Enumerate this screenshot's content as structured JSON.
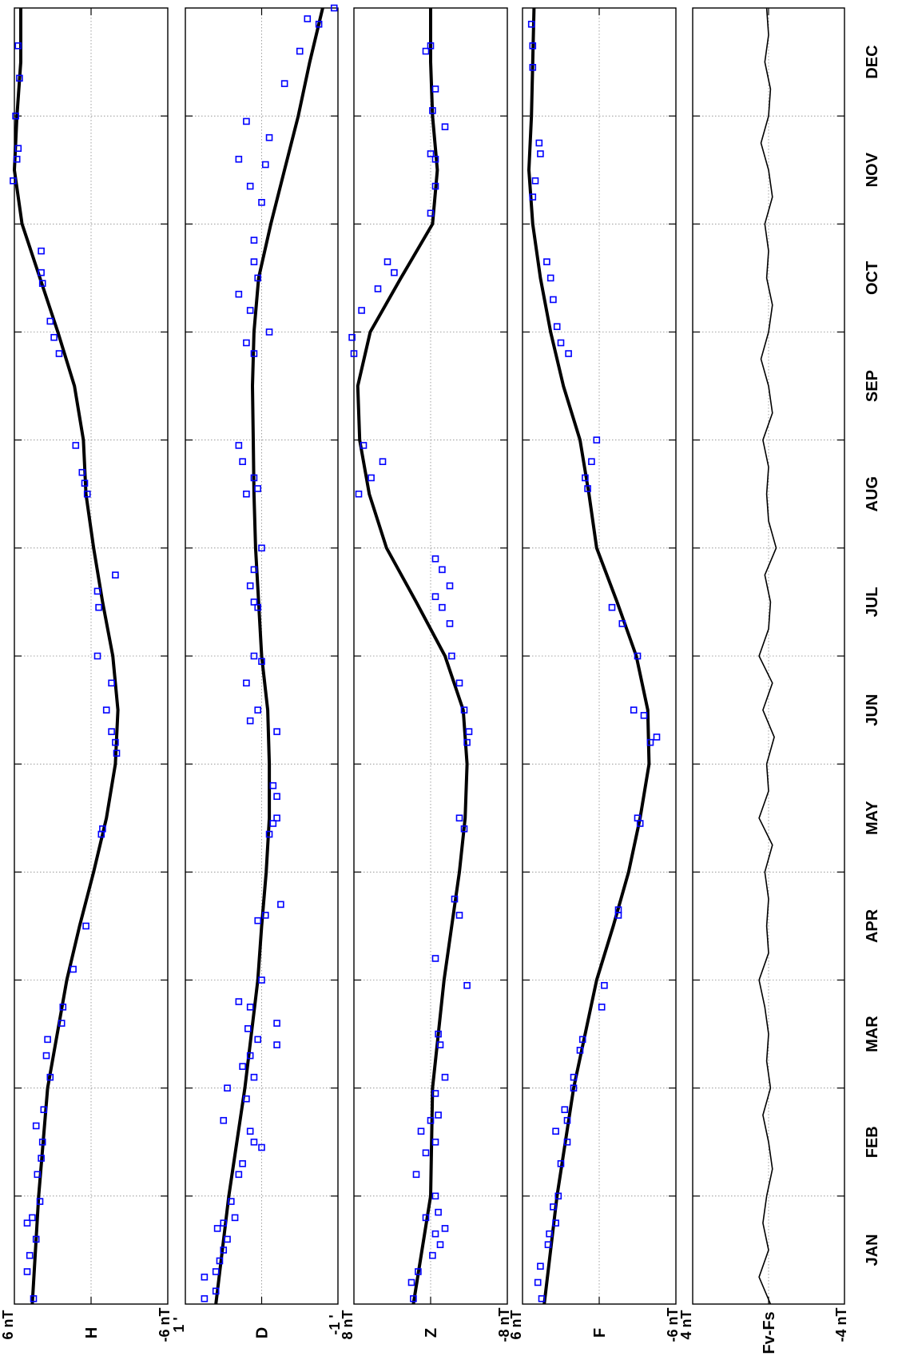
{
  "figure": {
    "orientation": "rotated 90 degrees counter-clockwise",
    "months": [
      "JAN",
      "FEB",
      "MAR",
      "APR",
      "MAY",
      "JUN",
      "JUL",
      "AUG",
      "SEP",
      "OCT",
      "NOV",
      "DEC"
    ]
  },
  "chart_data": [
    {
      "type": "scatter",
      "panel": "H",
      "ylabel": "H",
      "ytick_labels": {
        "top": "6 nT",
        "bottom": "-6 nT"
      },
      "ylim": [
        -6,
        6
      ],
      "xlim": [
        0,
        12
      ],
      "x_unit": "month",
      "grid": true,
      "series": [
        {
          "name": "",
          "kind": "fit",
          "color": "#000000",
          "x": [
            0,
            1,
            2,
            3,
            3.5,
            4,
            4.5,
            5,
            5.5,
            6,
            6.5,
            7,
            7.5,
            8,
            8.5,
            9,
            9.5,
            10,
            10.5,
            11,
            11.5,
            12
          ],
          "y": [
            4.6,
            4.1,
            3.4,
            1.9,
            0.9,
            -0.2,
            -1.2,
            -1.9,
            -2.1,
            -1.7,
            -0.9,
            -0.2,
            0.4,
            0.6,
            1.3,
            2.6,
            4.0,
            5.4,
            6.0,
            5.8,
            5.5,
            5.5
          ]
        },
        {
          "name": "",
          "kind": "monthly-means",
          "color": "#0000ff",
          "x": [
            0.05,
            0.3,
            0.45,
            0.6,
            0.75,
            0.8,
            0.95,
            1.2,
            1.35,
            1.5,
            1.65,
            1.8,
            2.1,
            2.3,
            2.45,
            2.6,
            2.75,
            3.1,
            3.5,
            4.35,
            4.4,
            5.1,
            5.2,
            5.3,
            5.5,
            5.75,
            6.0,
            6.45,
            6.6,
            6.75,
            7.5,
            7.6,
            7.7,
            7.95,
            8.8,
            8.95,
            9.1,
            9.45,
            9.55,
            9.75,
            10.4,
            10.6,
            10.7,
            11.0,
            11.35,
            11.65
          ],
          "y": [
            4.5,
            5.0,
            4.8,
            4.3,
            5.0,
            4.6,
            4.0,
            4.2,
            3.9,
            3.8,
            4.3,
            3.7,
            3.2,
            3.5,
            3.4,
            2.3,
            2.2,
            1.4,
            0.4,
            -0.8,
            -0.9,
            -2.0,
            -1.9,
            -1.6,
            -1.2,
            -1.6,
            -0.5,
            -0.6,
            -0.5,
            -1.9,
            0.3,
            0.5,
            0.7,
            1.2,
            2.5,
            2.9,
            3.2,
            3.8,
            3.9,
            3.9,
            6.1,
            5.8,
            5.7,
            5.9,
            5.6,
            5.7
          ]
        }
      ]
    },
    {
      "type": "scatter",
      "panel": "D",
      "ylabel": "D",
      "ytick_labels": {
        "top": "1 '",
        "bottom": "-1 '"
      },
      "ylim": [
        -1,
        1
      ],
      "xlim": [
        0,
        12
      ],
      "x_unit": "month",
      "grid": true,
      "series": [
        {
          "name": "",
          "kind": "fit",
          "color": "#000000",
          "x": [
            0,
            1,
            2,
            3,
            3.5,
            4,
            4.5,
            5,
            5.5,
            6,
            6.5,
            7,
            7.5,
            8,
            8.5,
            9,
            9.5,
            10,
            10.5,
            11,
            11.5,
            12
          ],
          "y": [
            0.6,
            0.43,
            0.22,
            0.05,
            0.0,
            -0.06,
            -0.1,
            -0.1,
            -0.08,
            0.0,
            0.04,
            0.08,
            0.1,
            0.11,
            0.12,
            0.1,
            0.04,
            -0.12,
            -0.3,
            -0.48,
            -0.63,
            -0.8
          ]
        },
        {
          "name": "",
          "kind": "monthly-means",
          "color": "#0000ff",
          "x": [
            0.05,
            0.12,
            0.25,
            0.3,
            0.4,
            0.5,
            0.6,
            0.7,
            0.75,
            0.8,
            0.95,
            1.2,
            1.3,
            1.45,
            1.5,
            1.6,
            1.7,
            1.9,
            2.0,
            2.1,
            2.2,
            2.3,
            2.4,
            2.45,
            2.55,
            2.6,
            2.75,
            2.8,
            3.0,
            3.55,
            3.6,
            3.7,
            4.35,
            4.45,
            4.5,
            4.7,
            4.8,
            5.3,
            5.4,
            5.5,
            5.75,
            5.95,
            6.0,
            6.45,
            6.5,
            6.65,
            6.8,
            7.0,
            7.5,
            7.55,
            7.65,
            7.8,
            7.95,
            8.8,
            8.9,
            9.0,
            9.2,
            9.35,
            9.5,
            9.65,
            9.85,
            10.2,
            10.35,
            10.55,
            10.6,
            10.8,
            10.95,
            11.3,
            11.6,
            11.85,
            11.9,
            12.0
          ],
          "y": [
            0.75,
            0.6,
            0.75,
            0.6,
            0.55,
            0.5,
            0.45,
            0.58,
            0.5,
            0.35,
            0.4,
            0.3,
            0.25,
            0.0,
            0.1,
            0.15,
            0.5,
            0.2,
            0.45,
            0.1,
            0.25,
            0.15,
            -0.2,
            0.05,
            0.18,
            -0.2,
            0.15,
            0.3,
            0.0,
            0.05,
            -0.05,
            -0.25,
            -0.1,
            -0.15,
            -0.2,
            -0.2,
            -0.15,
            -0.2,
            0.15,
            0.05,
            0.2,
            0.0,
            0.1,
            0.05,
            0.1,
            0.15,
            0.1,
            0.0,
            0.2,
            0.05,
            0.1,
            0.25,
            0.3,
            0.1,
            0.2,
            -0.1,
            0.15,
            0.3,
            0.05,
            0.1,
            0.1,
            0.0,
            0.15,
            -0.05,
            0.3,
            -0.1,
            0.2,
            -0.3,
            -0.5,
            -0.75,
            -0.6,
            -0.95
          ]
        }
      ]
    },
    {
      "type": "scatter",
      "panel": "Z",
      "ylabel": "Z",
      "ytick_labels": {
        "top": "8 nT",
        "bottom": "-8 nT"
      },
      "ylim": [
        -8,
        8
      ],
      "xlim": [
        0,
        12
      ],
      "x_unit": "month",
      "grid": true,
      "series": [
        {
          "name": "",
          "kind": "fit",
          "color": "#000000",
          "x": [
            0,
            1,
            2,
            3,
            3.5,
            4,
            4.5,
            5,
            5.5,
            6,
            6.5,
            7,
            7.5,
            8,
            8.5,
            9,
            9.5,
            10,
            10.5,
            11,
            11.5,
            12
          ],
          "y": [
            1.8,
            0.0,
            -0.2,
            -1.4,
            -2.2,
            -3.0,
            -3.6,
            -3.8,
            -3.4,
            -1.5,
            1.5,
            4.6,
            6.4,
            7.4,
            7.6,
            6.3,
            3.1,
            -0.2,
            -0.7,
            -0.2,
            0.0,
            0.0
          ]
        },
        {
          "name": "",
          "kind": "monthly-means",
          "color": "#0000ff",
          "x": [
            0.05,
            0.2,
            0.3,
            0.45,
            0.55,
            0.65,
            0.7,
            0.8,
            0.85,
            1.0,
            1.2,
            1.4,
            1.5,
            1.6,
            1.7,
            1.75,
            1.95,
            2.1,
            2.4,
            2.5,
            2.95,
            3.2,
            3.6,
            3.75,
            4.4,
            4.5,
            5.2,
            5.3,
            5.5,
            5.75,
            6.0,
            6.3,
            6.45,
            6.55,
            6.65,
            6.8,
            6.9,
            7.5,
            7.65,
            7.8,
            7.95,
            8.8,
            8.95,
            9.2,
            9.4,
            9.55,
            9.65,
            10.1,
            10.35,
            10.6,
            10.65,
            10.9,
            11.05,
            11.25,
            11.6,
            11.65
          ],
          "y": [
            1.8,
            2.0,
            1.3,
            -0.2,
            -1.0,
            -0.5,
            -1.5,
            0.5,
            -0.8,
            -0.5,
            1.5,
            0.5,
            -0.5,
            1.0,
            0.0,
            -0.8,
            -0.5,
            -1.5,
            -1.0,
            -0.8,
            -3.8,
            -0.5,
            -3.0,
            -2.5,
            -3.5,
            -3.0,
            -3.8,
            -4.0,
            -3.5,
            -3.0,
            -2.2,
            -2.0,
            -1.2,
            -0.5,
            -2.0,
            -1.2,
            -0.5,
            7.5,
            6.2,
            5.0,
            7.0,
            8.0,
            8.2,
            7.2,
            5.5,
            3.8,
            4.5,
            0.0,
            -0.5,
            -0.5,
            0.0,
            -1.5,
            -0.2,
            -0.5,
            0.5,
            0.0
          ]
        }
      ]
    },
    {
      "type": "scatter",
      "panel": "F",
      "ylabel": "F",
      "ytick_labels": {
        "top": "6 nT",
        "bottom": "-6 nT"
      },
      "ylim": [
        -6,
        6
      ],
      "xlim": [
        0,
        12
      ],
      "x_unit": "month",
      "grid": true,
      "series": [
        {
          "name": "",
          "kind": "fit",
          "color": "#000000",
          "x": [
            0,
            1,
            2,
            3,
            3.5,
            4,
            4.5,
            5,
            5.5,
            6,
            6.5,
            7,
            7.5,
            8,
            8.5,
            9,
            9.5,
            10,
            10.5,
            11,
            11.5,
            12
          ],
          "y": [
            4.3,
            3.3,
            2.0,
            0.2,
            -1.1,
            -2.3,
            -3.2,
            -3.9,
            -3.8,
            -2.9,
            -1.4,
            0.2,
            0.8,
            1.5,
            2.8,
            3.8,
            4.6,
            5.2,
            5.5,
            5.3,
            5.2,
            5.1
          ]
        },
        {
          "name": "",
          "kind": "monthly-means",
          "color": "#0000ff",
          "x": [
            0.05,
            0.2,
            0.35,
            0.55,
            0.65,
            0.75,
            0.9,
            1.0,
            1.3,
            1.5,
            1.6,
            1.7,
            1.8,
            2.0,
            2.1,
            2.35,
            2.45,
            2.75,
            2.95,
            3.6,
            3.65,
            4.45,
            4.5,
            5.2,
            5.25,
            5.45,
            5.5,
            6.0,
            6.3,
            6.45,
            7.55,
            7.65,
            7.8,
            8.0,
            8.8,
            8.9,
            9.05,
            9.3,
            9.5,
            9.65,
            10.25,
            10.4,
            10.65,
            10.75,
            11.45,
            11.65,
            11.85
          ],
          "y": [
            4.5,
            4.8,
            4.6,
            4.0,
            3.9,
            3.4,
            3.6,
            3.2,
            3.0,
            2.5,
            3.4,
            2.5,
            2.7,
            2.0,
            2.0,
            1.5,
            1.3,
            -0.2,
            -0.4,
            -1.5,
            -1.5,
            -3.2,
            -3.0,
            -4.0,
            -4.5,
            -3.5,
            -2.7,
            -3.0,
            -1.8,
            -1.0,
            0.9,
            1.1,
            0.6,
            0.2,
            2.4,
            3.0,
            3.3,
            3.6,
            3.8,
            4.1,
            5.2,
            5.0,
            4.6,
            4.7,
            5.2,
            5.2,
            5.3
          ]
        }
      ]
    },
    {
      "type": "line",
      "panel": "Fv-Fs",
      "ylabel": "Fv-Fs",
      "ytick_labels": {
        "top": "4 nT",
        "bottom": "-4 nT"
      },
      "ylim": [
        -4,
        4
      ],
      "xlim": [
        0,
        12
      ],
      "x_unit": "month",
      "grid": true,
      "series": [
        {
          "name": "",
          "kind": "difference",
          "color": "#000000",
          "x": [
            0.0,
            0.25,
            0.5,
            0.75,
            1.0,
            1.25,
            1.5,
            1.75,
            2.0,
            2.25,
            2.5,
            2.75,
            3.0,
            3.25,
            3.5,
            3.75,
            4.0,
            4.25,
            4.5,
            4.75,
            5.0,
            5.25,
            5.5,
            5.75,
            6.0,
            6.25,
            6.5,
            6.75,
            7.0,
            7.25,
            7.5,
            7.75,
            8.0,
            8.25,
            8.5,
            8.75,
            9.0,
            9.25,
            9.5,
            9.75,
            10.0,
            10.25,
            10.5,
            10.75,
            11.0,
            11.25,
            11.5,
            11.75,
            12.0
          ],
          "y": [
            -0.1,
            0.5,
            0.0,
            0.3,
            0.1,
            -0.2,
            0.0,
            0.3,
            -0.1,
            0.1,
            0.0,
            0.2,
            0.5,
            0.0,
            0.1,
            0.0,
            0.2,
            -0.2,
            0.5,
            0.0,
            0.1,
            -0.3,
            0.3,
            -0.2,
            0.5,
            0.0,
            -0.1,
            0.2,
            -0.4,
            0.0,
            0.1,
            0.0,
            0.3,
            -0.2,
            0.0,
            0.4,
            0.0,
            -0.2,
            0.1,
            0.0,
            0.2,
            -0.2,
            0.0,
            0.4,
            0.0,
            -0.1,
            0.2,
            0.0,
            0.1
          ]
        }
      ]
    }
  ]
}
